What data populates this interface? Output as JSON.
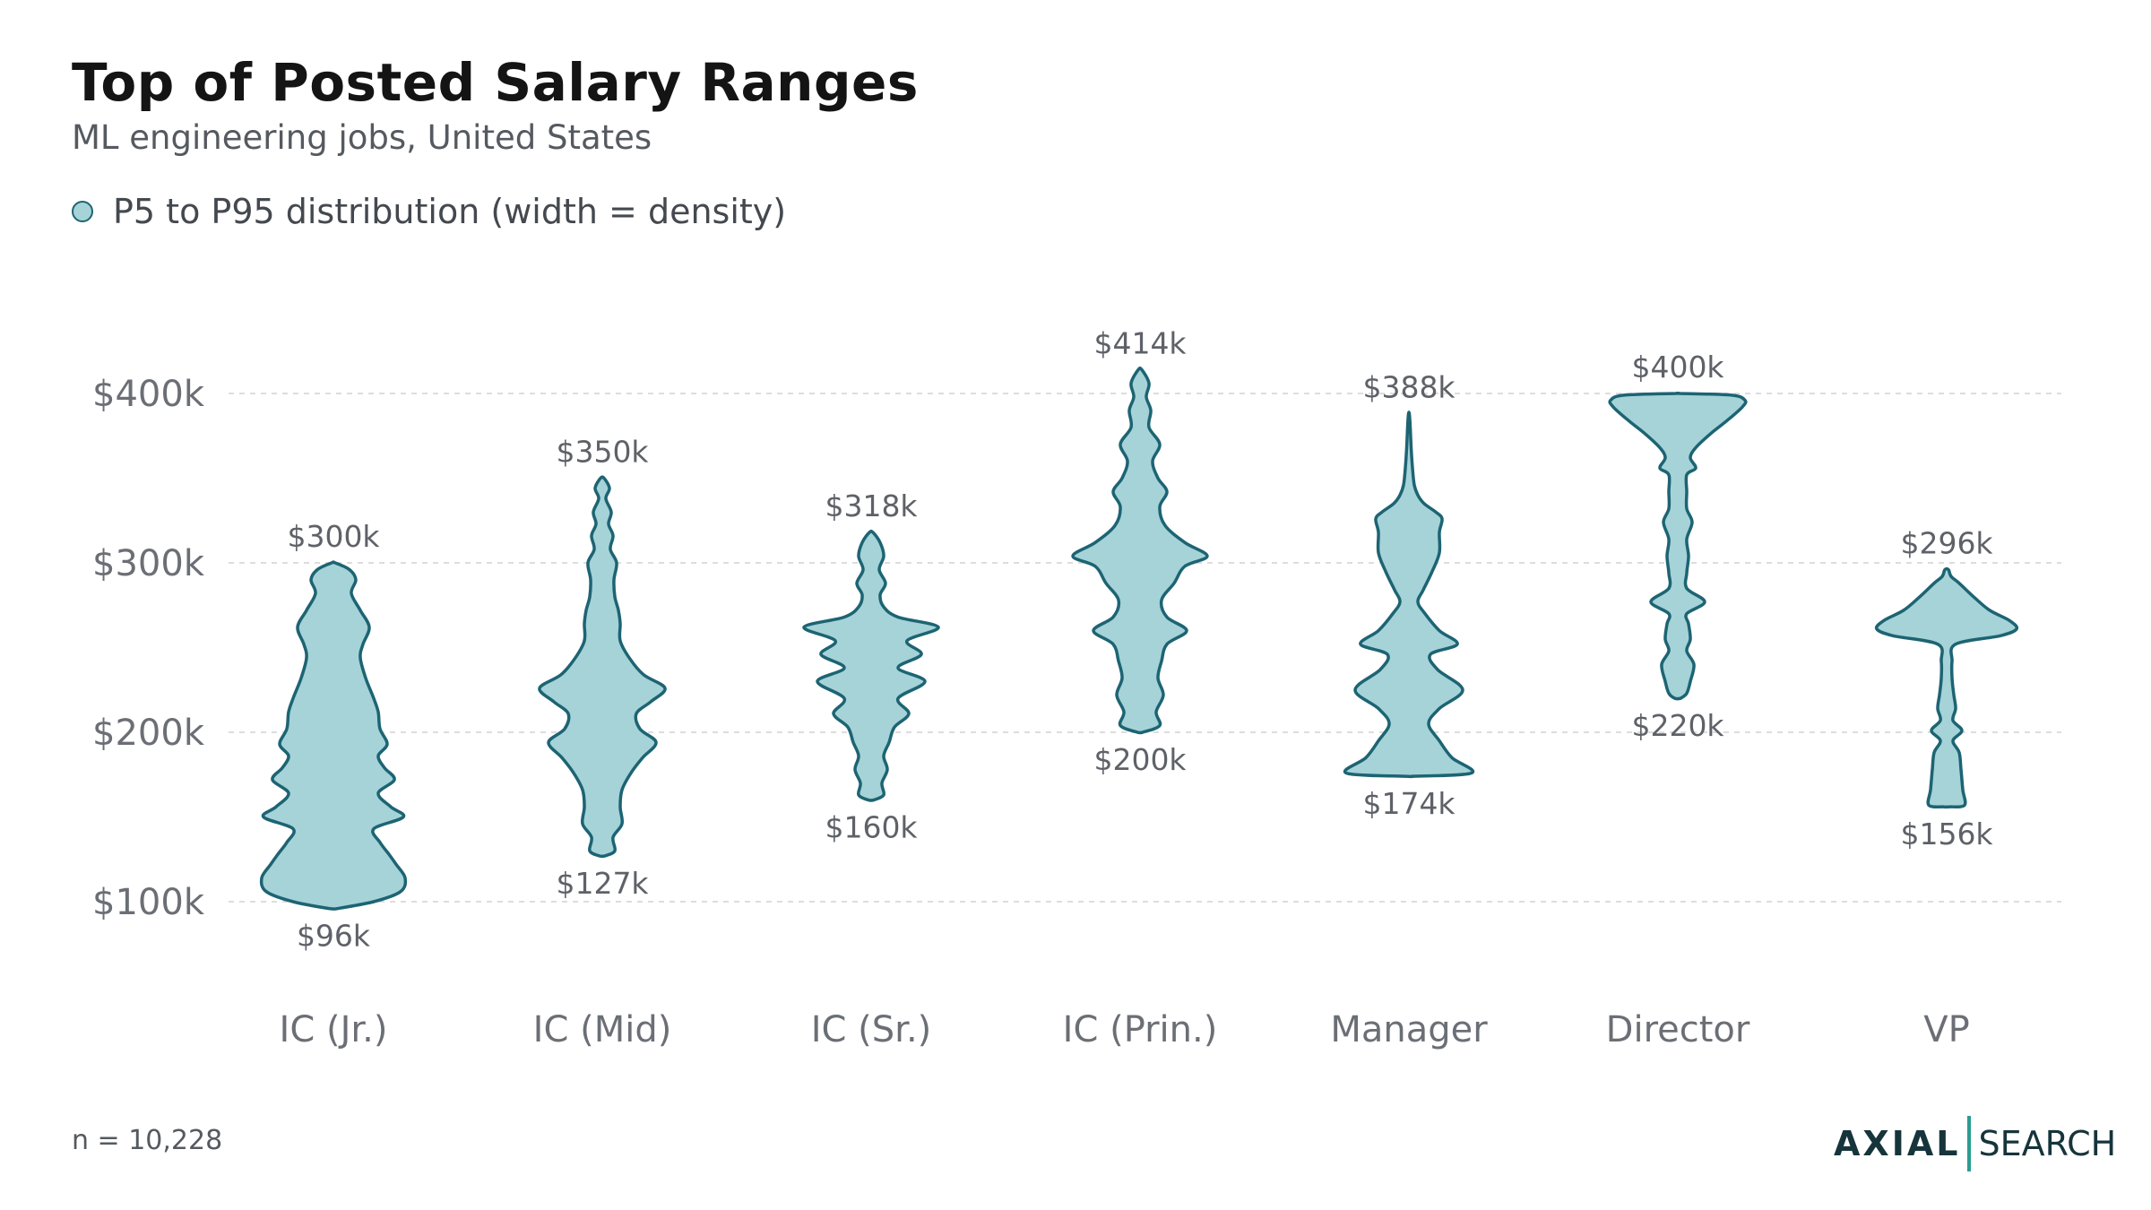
{
  "chart_data": {
    "type": "violin",
    "title": "Top of Posted Salary Ranges",
    "subtitle": "ML engineering jobs, United States",
    "legend": {
      "label": "P5 to P95 distribution (width = density)",
      "position": "top-left"
    },
    "yticks": [
      {
        "value": 100,
        "label": "$100k"
      },
      {
        "value": 200,
        "label": "$200k"
      },
      {
        "value": 300,
        "label": "$300k"
      },
      {
        "value": 400,
        "label": "$400k"
      }
    ],
    "ylim": [
      60,
      460
    ],
    "grid": true,
    "units": "thousand USD",
    "categories": [
      "IC (Jr.)",
      "IC (Mid)",
      "IC (Sr.)",
      "IC (Prin.)",
      "Manager",
      "Director",
      "VP"
    ],
    "series": [
      {
        "category": "IC (Jr.)",
        "min": 96,
        "max": 300,
        "min_label": "$96k",
        "max_label": "$300k",
        "density": [
          [
            96,
            0.05
          ],
          [
            100,
            0.45
          ],
          [
            106,
            0.75
          ],
          [
            114,
            0.8
          ],
          [
            122,
            0.7
          ],
          [
            128,
            0.62
          ],
          [
            135,
            0.52
          ],
          [
            143,
            0.45
          ],
          [
            150,
            0.78
          ],
          [
            156,
            0.64
          ],
          [
            164,
            0.5
          ],
          [
            172,
            0.68
          ],
          [
            179,
            0.57
          ],
          [
            186,
            0.5
          ],
          [
            193,
            0.6
          ],
          [
            202,
            0.52
          ],
          [
            212,
            0.5
          ],
          [
            220,
            0.45
          ],
          [
            232,
            0.36
          ],
          [
            244,
            0.3
          ],
          [
            252,
            0.33
          ],
          [
            262,
            0.4
          ],
          [
            272,
            0.3
          ],
          [
            282,
            0.2
          ],
          [
            290,
            0.25
          ],
          [
            296,
            0.18
          ],
          [
            300,
            0.02
          ]
        ]
      },
      {
        "category": "IC (Mid)",
        "min": 127,
        "max": 350,
        "min_label": "$127k",
        "max_label": "$350k",
        "density": [
          [
            127,
            0.03
          ],
          [
            130,
            0.14
          ],
          [
            138,
            0.12
          ],
          [
            146,
            0.22
          ],
          [
            156,
            0.2
          ],
          [
            166,
            0.22
          ],
          [
            176,
            0.32
          ],
          [
            185,
            0.45
          ],
          [
            194,
            0.6
          ],
          [
            202,
            0.42
          ],
          [
            211,
            0.38
          ],
          [
            218,
            0.54
          ],
          [
            226,
            0.7
          ],
          [
            234,
            0.46
          ],
          [
            244,
            0.3
          ],
          [
            254,
            0.2
          ],
          [
            264,
            0.2
          ],
          [
            272,
            0.18
          ],
          [
            280,
            0.14
          ],
          [
            290,
            0.13
          ],
          [
            300,
            0.16
          ],
          [
            308,
            0.09
          ],
          [
            316,
            0.12
          ],
          [
            323,
            0.07
          ],
          [
            330,
            0.1
          ],
          [
            338,
            0.04
          ],
          [
            344,
            0.08
          ],
          [
            350,
            0.02
          ]
        ]
      },
      {
        "category": "IC (Sr.)",
        "min": 160,
        "max": 318,
        "min_label": "$160k",
        "max_label": "$318k",
        "density": [
          [
            160,
            0.03
          ],
          [
            163,
            0.14
          ],
          [
            170,
            0.12
          ],
          [
            178,
            0.18
          ],
          [
            186,
            0.14
          ],
          [
            194,
            0.2
          ],
          [
            203,
            0.26
          ],
          [
            211,
            0.42
          ],
          [
            220,
            0.3
          ],
          [
            230,
            0.6
          ],
          [
            238,
            0.3
          ],
          [
            246,
            0.56
          ],
          [
            254,
            0.4
          ],
          [
            262,
            0.75
          ],
          [
            268,
            0.3
          ],
          [
            274,
            0.14
          ],
          [
            281,
            0.1
          ],
          [
            288,
            0.16
          ],
          [
            296,
            0.09
          ],
          [
            304,
            0.14
          ],
          [
            312,
            0.1
          ],
          [
            318,
            0.02
          ]
        ]
      },
      {
        "category": "IC (Prin.)",
        "min": 200,
        "max": 414,
        "min_label": "$200k",
        "max_label": "$414k",
        "density": [
          [
            200,
            0.03
          ],
          [
            204,
            0.22
          ],
          [
            212,
            0.18
          ],
          [
            222,
            0.26
          ],
          [
            232,
            0.2
          ],
          [
            242,
            0.24
          ],
          [
            252,
            0.3
          ],
          [
            260,
            0.52
          ],
          [
            268,
            0.3
          ],
          [
            278,
            0.24
          ],
          [
            288,
            0.38
          ],
          [
            298,
            0.5
          ],
          [
            304,
            0.75
          ],
          [
            312,
            0.5
          ],
          [
            322,
            0.28
          ],
          [
            333,
            0.22
          ],
          [
            342,
            0.3
          ],
          [
            350,
            0.2
          ],
          [
            360,
            0.14
          ],
          [
            370,
            0.22
          ],
          [
            380,
            0.1
          ],
          [
            390,
            0.12
          ],
          [
            398,
            0.07
          ],
          [
            406,
            0.1
          ],
          [
            414,
            0.02
          ]
        ]
      },
      {
        "category": "Manager",
        "min": 174,
        "max": 388,
        "min_label": "$174k",
        "max_label": "$388k",
        "density": [
          [
            174,
            0.03
          ],
          [
            176,
            0.7
          ],
          [
            185,
            0.48
          ],
          [
            195,
            0.34
          ],
          [
            205,
            0.22
          ],
          [
            214,
            0.34
          ],
          [
            225,
            0.6
          ],
          [
            237,
            0.32
          ],
          [
            246,
            0.24
          ],
          [
            252,
            0.54
          ],
          [
            260,
            0.34
          ],
          [
            270,
            0.18
          ],
          [
            277,
            0.1
          ],
          [
            284,
            0.16
          ],
          [
            295,
            0.26
          ],
          [
            306,
            0.34
          ],
          [
            318,
            0.34
          ],
          [
            326,
            0.37
          ],
          [
            330,
            0.3
          ],
          [
            335,
            0.17
          ],
          [
            340,
            0.1
          ],
          [
            346,
            0.06
          ],
          [
            356,
            0.04
          ],
          [
            368,
            0.025
          ],
          [
            380,
            0.015
          ],
          [
            388,
            0.005
          ]
        ]
      },
      {
        "category": "Director",
        "min": 220,
        "max": 400,
        "min_label": "$220k",
        "max_label": "$400k",
        "density": [
          [
            220,
            0.03
          ],
          [
            223,
            0.1
          ],
          [
            230,
            0.14
          ],
          [
            240,
            0.18
          ],
          [
            248,
            0.1
          ],
          [
            255,
            0.14
          ],
          [
            264,
            0.12
          ],
          [
            270,
            0.1
          ],
          [
            277,
            0.3
          ],
          [
            285,
            0.1
          ],
          [
            294,
            0.1
          ],
          [
            304,
            0.12
          ],
          [
            314,
            0.1
          ],
          [
            324,
            0.16
          ],
          [
            332,
            0.1
          ],
          [
            342,
            0.1
          ],
          [
            352,
            0.1
          ],
          [
            356,
            0.2
          ],
          [
            362,
            0.14
          ],
          [
            368,
            0.2
          ],
          [
            376,
            0.36
          ],
          [
            384,
            0.55
          ],
          [
            392,
            0.72
          ],
          [
            396,
            0.75
          ],
          [
            399,
            0.6
          ],
          [
            400,
            0.02
          ]
        ]
      },
      {
        "category": "VP",
        "min": 156,
        "max": 296,
        "min_label": "$156k",
        "max_label": "$296k",
        "density": [
          [
            156,
            0.03
          ],
          [
            157,
            0.2
          ],
          [
            166,
            0.18
          ],
          [
            178,
            0.16
          ],
          [
            188,
            0.14
          ],
          [
            195,
            0.07
          ],
          [
            201,
            0.17
          ],
          [
            207,
            0.07
          ],
          [
            214,
            0.1
          ],
          [
            222,
            0.08
          ],
          [
            232,
            0.06
          ],
          [
            242,
            0.06
          ],
          [
            252,
            0.1
          ],
          [
            257,
            0.6
          ],
          [
            261,
            0.78
          ],
          [
            266,
            0.7
          ],
          [
            272,
            0.48
          ],
          [
            280,
            0.3
          ],
          [
            288,
            0.14
          ],
          [
            292,
            0.05
          ],
          [
            296,
            0.02
          ]
        ]
      }
    ]
  },
  "footnote": "n = 10,228",
  "brand": {
    "name": "AXIAL",
    "product": "SEARCH",
    "accent_color": "#2a9d8f"
  },
  "colors": {
    "fill": "#a5d3d8",
    "stroke": "#1d6473",
    "grid": "#dddddd"
  }
}
